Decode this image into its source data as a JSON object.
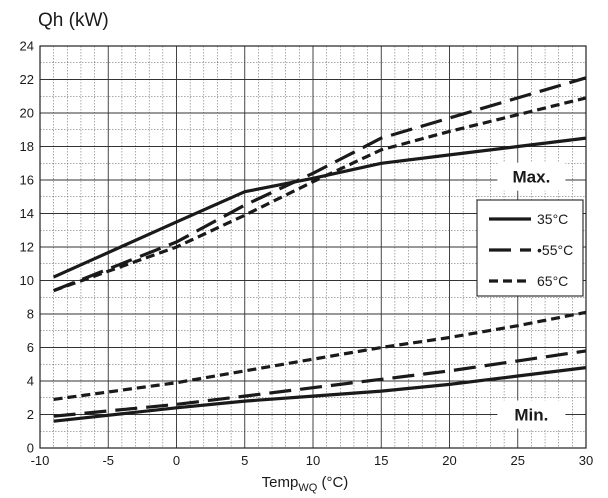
{
  "chart_data": {
    "type": "line",
    "ylabel": "Qh (kW)",
    "xlabel": "Temp",
    "xlabel_sub": "WQ",
    "xlabel_suffix": " (°C)",
    "xlim": [
      -10,
      30
    ],
    "ylim": [
      0,
      24
    ],
    "x_ticks": [
      -10,
      -5,
      0,
      5,
      10,
      15,
      20,
      25,
      30
    ],
    "y_ticks": [
      0,
      2,
      4,
      6,
      8,
      10,
      12,
      14,
      16,
      18,
      20,
      22,
      24
    ],
    "grid": true,
    "legend_position": "right",
    "legend": [
      {
        "label": "35°C",
        "dash": "solid"
      },
      {
        "label": "•55°C",
        "dash": "long-dash"
      },
      {
        "label": "65°C",
        "dash": "short-dash"
      }
    ],
    "annotations": [
      {
        "text": "Max.",
        "x": 26,
        "y": 16.2
      },
      {
        "text": "Min.",
        "x": 26,
        "y": 2
      }
    ],
    "series": [
      {
        "group": "max",
        "dash": "solid",
        "x": [
          -9,
          0,
          5,
          10,
          15,
          20,
          25,
          30
        ],
        "values": [
          10.2,
          13.5,
          15.3,
          16.1,
          17,
          17.5,
          18,
          18.5
        ]
      },
      {
        "group": "max",
        "dash": "long-dash",
        "x": [
          -9,
          0,
          5,
          10,
          15,
          20,
          25,
          30
        ],
        "values": [
          9.4,
          12.3,
          14.5,
          16.4,
          18.5,
          19.7,
          20.9,
          22.1
        ]
      },
      {
        "group": "max",
        "dash": "short-dash",
        "x": [
          -9,
          0,
          5,
          10,
          15,
          20,
          25,
          30
        ],
        "values": [
          9.4,
          12,
          13.9,
          15.9,
          17.8,
          18.9,
          19.9,
          20.9
        ]
      },
      {
        "group": "min",
        "dash": "solid",
        "x": [
          -9,
          0,
          5,
          10,
          15,
          20,
          25,
          30
        ],
        "values": [
          1.6,
          2.4,
          2.8,
          3.1,
          3.4,
          3.8,
          4.3,
          4.8
        ]
      },
      {
        "group": "min",
        "dash": "long-dash",
        "x": [
          -9,
          0,
          5,
          10,
          15,
          20,
          25,
          30
        ],
        "values": [
          1.9,
          2.6,
          3.1,
          3.6,
          4.1,
          4.6,
          5.2,
          5.8
        ]
      },
      {
        "group": "min",
        "dash": "short-dash",
        "x": [
          -9,
          0,
          5,
          10,
          15,
          20,
          25,
          30
        ],
        "values": [
          2.9,
          3.9,
          4.6,
          5.3,
          6,
          6.6,
          7.3,
          8.1
        ]
      }
    ]
  }
}
